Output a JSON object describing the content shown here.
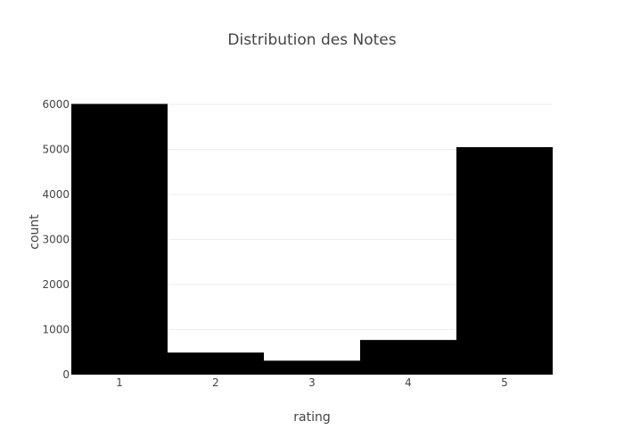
{
  "chart_data": {
    "type": "bar",
    "title": "Distribution des Notes",
    "xlabel": "rating",
    "ylabel": "count",
    "categories": [
      "1",
      "2",
      "3",
      "4",
      "5"
    ],
    "values": [
      6010,
      490,
      310,
      770,
      5050
    ],
    "ylim": [
      0,
      6000
    ],
    "yticks": [
      0,
      1000,
      2000,
      3000,
      4000,
      5000,
      6000
    ],
    "ytick_labels": [
      "0",
      "1000",
      "2000",
      "3000",
      "4000",
      "5000",
      "6000"
    ],
    "grid": true,
    "bar_color": "#000000",
    "grid_color": "#eeeeee",
    "legend": "none"
  }
}
